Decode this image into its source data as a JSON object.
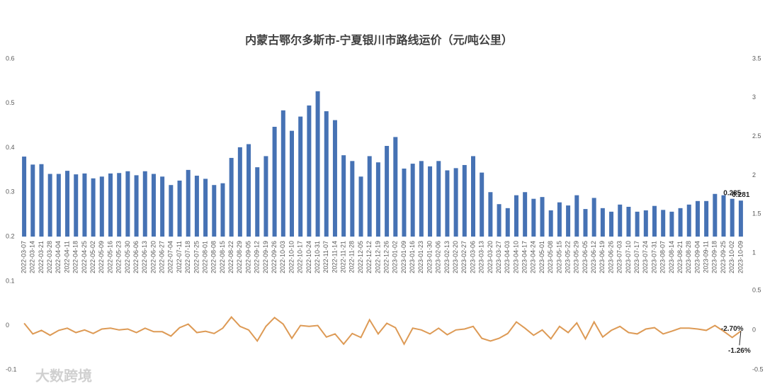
{
  "watermark": "大数跨境",
  "chart_data": [
    {
      "type": "bar",
      "title": "内蒙古鄂尔多斯市-宁夏银川市路线运价（元/吨公里）",
      "color": "#4672b4",
      "categories": [
        "2022-03-07",
        "2022-03-14",
        "2022-03-21",
        "2022-03-28",
        "2022-04-04",
        "2022-04-11",
        "2022-04-18",
        "2022-04-25",
        "2022-05-02",
        "2022-05-09",
        "2022-05-16",
        "2022-05-23",
        "2022-05-30",
        "2022-06-06",
        "2022-06-13",
        "2022-06-20",
        "2022-06-27",
        "2022-07-04",
        "2022-07-11",
        "2022-07-18",
        "2022-07-25",
        "2022-08-01",
        "2022-08-08",
        "2022-08-15",
        "2022-08-22",
        "2022-08-29",
        "2022-09-05",
        "2022-09-12",
        "2022-09-19",
        "2022-09-26",
        "2022-10-03",
        "2022-10-10",
        "2022-10-17",
        "2022-10-24",
        "2022-10-31",
        "2022-11-07",
        "2022-11-14",
        "2022-11-21",
        "2022-11-28",
        "2022-12-05",
        "2022-12-12",
        "2022-12-19",
        "2022-12-26",
        "2023-01-02",
        "2023-01-09",
        "2023-01-16",
        "2023-01-23",
        "2023-01-30",
        "2023-02-06",
        "2023-02-13",
        "2023-02-20",
        "2023-02-27",
        "2023-03-06",
        "2023-03-13",
        "2023-03-20",
        "2023-03-27",
        "2023-04-03",
        "2023-04-10",
        "2023-04-17",
        "2023-04-24",
        "2023-05-01",
        "2023-05-08",
        "2023-05-15",
        "2023-05-22",
        "2023-05-29",
        "2023-06-05",
        "2023-06-12",
        "2023-06-19",
        "2023-06-26",
        "2023-07-03",
        "2023-07-10",
        "2023-07-17",
        "2023-07-24",
        "2023-07-31",
        "2023-08-07",
        "2023-08-14",
        "2023-08-21",
        "2023-08-28",
        "2023-09-04",
        "2023-09-11",
        "2023-09-18",
        "2023-09-25",
        "2023-10-02",
        "2023-10-09"
      ],
      "values": [
        0.38,
        0.362,
        0.363,
        0.341,
        0.341,
        0.348,
        0.34,
        0.342,
        0.331,
        0.335,
        0.342,
        0.343,
        0.347,
        0.338,
        0.347,
        0.341,
        0.335,
        0.316,
        0.326,
        0.35,
        0.337,
        0.33,
        0.316,
        0.32,
        0.377,
        0.401,
        0.408,
        0.356,
        0.381,
        0.447,
        0.484,
        0.438,
        0.47,
        0.495,
        0.527,
        0.482,
        0.462,
        0.383,
        0.37,
        0.335,
        0.381,
        0.367,
        0.404,
        0.424,
        0.353,
        0.364,
        0.37,
        0.358,
        0.37,
        0.349,
        0.354,
        0.361,
        0.381,
        0.344,
        0.3,
        0.273,
        0.264,
        0.293,
        0.3,
        0.285,
        0.289,
        0.259,
        0.277,
        0.27,
        0.293,
        0.262,
        0.287,
        0.264,
        0.256,
        0.272,
        0.267,
        0.256,
        0.259,
        0.269,
        0.26,
        0.256,
        0.264,
        0.272,
        0.28,
        0.28,
        0.296,
        0.293,
        0.285,
        0.281
      ],
      "labeled": [
        82,
        83
      ],
      "ylim": [
        0.2,
        0.6
      ],
      "yticks": [
        0.2,
        0.3,
        0.4,
        0.5,
        0.6
      ],
      "y2lim": [
        1,
        3.5
      ],
      "y2ticks": [
        1,
        1.5,
        2,
        2.5,
        3,
        3.5
      ]
    },
    {
      "type": "line",
      "color": "#dd9a55",
      "values": [
        0.005,
        -0.019,
        -0.011,
        -0.022,
        -0.011,
        -0.006,
        -0.016,
        -0.01,
        -0.018,
        -0.008,
        -0.006,
        -0.01,
        -0.008,
        -0.016,
        -0.006,
        -0.014,
        -0.014,
        -0.024,
        -0.005,
        0.003,
        -0.016,
        -0.013,
        -0.018,
        -0.006,
        0.019,
        -0.002,
        -0.01,
        -0.035,
        -0.002,
        0.018,
        0.003,
        -0.029,
        0,
        -0.002,
        0,
        -0.026,
        -0.019,
        -0.042,
        -0.018,
        -0.027,
        0.013,
        -0.019,
        0.005,
        -0.005,
        -0.042,
        -0.006,
        -0.01,
        -0.019,
        -0.006,
        -0.021,
        -0.01,
        -0.008,
        -0.002,
        -0.029,
        -0.035,
        -0.029,
        -0.018,
        0.008,
        -0.006,
        -0.022,
        -0.01,
        -0.03,
        -0.002,
        -0.016,
        0.006,
        -0.03,
        0.008,
        -0.026,
        -0.011,
        -0.002,
        -0.016,
        -0.019,
        -0.008,
        -0.005,
        -0.019,
        -0.013,
        -0.006,
        -0.006,
        -0.008,
        -0.011,
        0,
        -0.013,
        -0.027,
        -0.0126
      ],
      "value_labels": [
        null,
        null,
        null,
        null,
        null,
        null,
        null,
        null,
        null,
        null,
        null,
        null,
        null,
        null,
        null,
        null,
        null,
        null,
        null,
        null,
        null,
        null,
        null,
        null,
        null,
        null,
        null,
        null,
        null,
        null,
        null,
        null,
        null,
        null,
        null,
        null,
        null,
        null,
        null,
        null,
        null,
        null,
        null,
        null,
        null,
        null,
        null,
        null,
        null,
        null,
        null,
        null,
        null,
        null,
        null,
        null,
        null,
        null,
        null,
        null,
        null,
        null,
        null,
        null,
        null,
        null,
        null,
        null,
        null,
        null,
        null,
        null,
        null,
        null,
        null,
        null,
        null,
        null,
        null,
        null,
        null,
        null,
        "-2.70%",
        "-1.26%"
      ],
      "ylim": [
        -0.1,
        0.1
      ],
      "yticks": [
        -0.1,
        0,
        0.1
      ],
      "y2lim": [
        -0.5,
        0.5
      ],
      "y2ticks": [
        -0.5,
        0,
        0.5
      ]
    }
  ]
}
